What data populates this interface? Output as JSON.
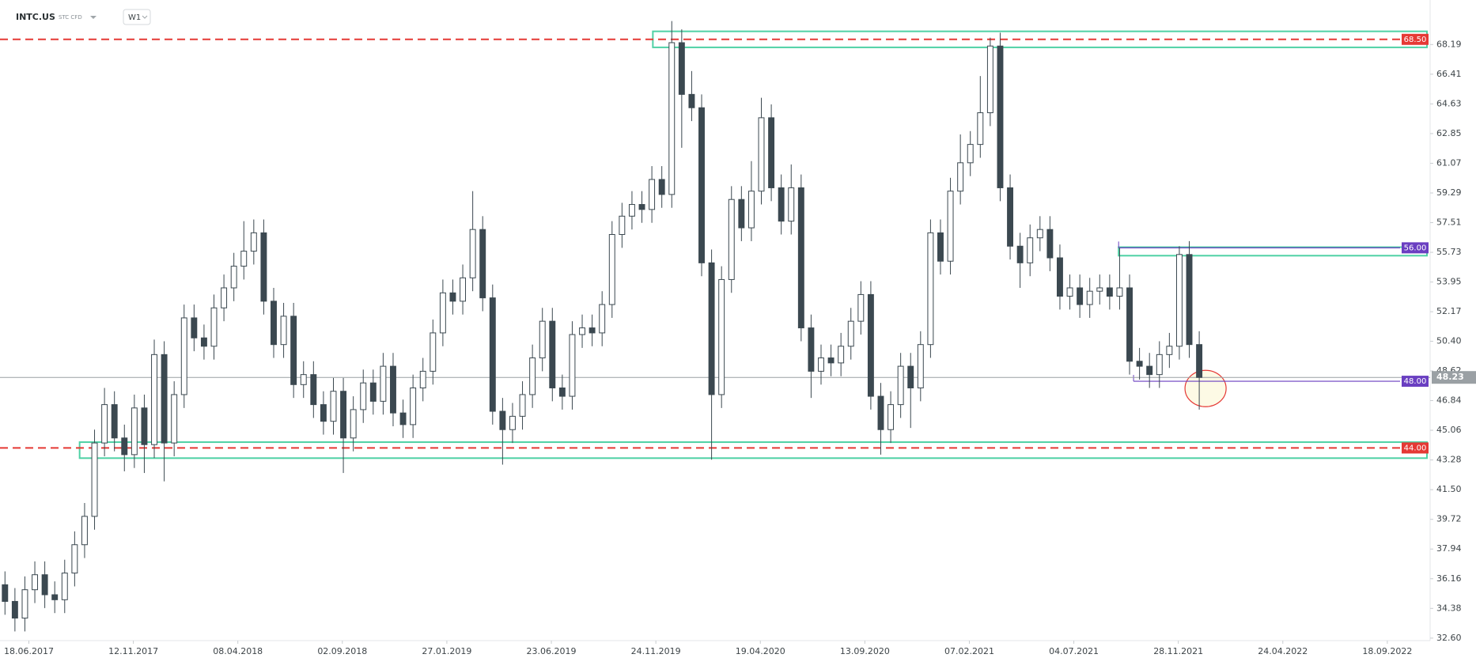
{
  "header": {
    "symbol": "INTC.US",
    "instrument": "STC CFD",
    "interval": "W1"
  },
  "chart_data": {
    "type": "candlestick",
    "xlim": [
      0,
      143.7
    ],
    "xticks": [
      {
        "value": 2.9,
        "label": "18.06.2017"
      },
      {
        "value": 13.4,
        "label": "12.11.2017"
      },
      {
        "value": 23.9,
        "label": "08.04.2018"
      },
      {
        "value": 34.4,
        "label": "02.09.2018"
      },
      {
        "value": 44.9,
        "label": "27.01.2019"
      },
      {
        "value": 55.4,
        "label": "23.06.2019"
      },
      {
        "value": 65.9,
        "label": "24.11.2019"
      },
      {
        "value": 76.4,
        "label": "19.04.2020"
      },
      {
        "value": 86.9,
        "label": "13.09.2020"
      },
      {
        "value": 97.4,
        "label": "07.02.2021"
      },
      {
        "value": 107.9,
        "label": "04.07.2021"
      },
      {
        "value": 118.4,
        "label": "28.11.2021"
      },
      {
        "value": 128.9,
        "label": "24.04.2022"
      },
      {
        "value": 139.4,
        "label": "18.09.2022"
      }
    ],
    "ylim": [
      32.45,
      70.86
    ],
    "yticks": [
      {
        "value": 32.6,
        "label": "32.60"
      },
      34.38,
      36.16,
      37.94,
      39.72,
      {
        "value": 41.5,
        "label": "41.50"
      },
      43.28,
      45.06,
      46.84,
      48.62,
      {
        "value": 50.4,
        "label": "50.40"
      },
      52.17,
      53.95,
      55.73,
      57.51,
      59.29,
      61.07,
      62.85,
      64.63,
      66.41,
      68.19
    ],
    "up_color": "#ffffff",
    "down_color": "#3b4850",
    "outline_color": "#3b4850",
    "open": [
      35.8,
      34.8,
      33.8,
      35.5,
      36.4,
      35.2,
      34.9,
      36.5,
      38.2,
      39.9,
      44.3,
      46.6,
      44.6,
      43.6,
      46.4,
      44.2,
      49.6,
      44.3,
      47.2,
      51.8,
      50.6,
      50.1,
      52.4,
      53.6,
      54.9,
      55.8,
      56.9,
      52.8,
      50.2,
      51.9,
      47.8,
      48.4,
      46.6,
      45.6,
      47.4,
      44.6,
      46.3,
      47.9,
      46.8,
      48.9,
      46.1,
      45.4,
      47.6,
      48.6,
      50.9,
      53.3,
      52.8,
      54.2,
      57.1,
      53.0,
      46.2,
      45.1,
      45.9,
      47.2,
      49.4,
      51.6,
      47.6,
      47.1,
      50.8,
      51.2,
      50.9,
      52.6,
      56.8,
      57.9,
      58.6,
      58.3,
      60.1,
      59.2,
      68.3,
      65.2,
      64.4,
      55.1,
      47.2,
      54.1,
      58.9,
      57.2,
      59.4,
      63.8,
      59.6,
      57.6,
      59.6,
      51.2,
      48.6,
      49.4,
      49.1,
      50.1,
      51.6,
      53.2,
      47.1,
      45.1,
      46.6,
      48.9,
      47.6,
      50.2,
      56.9,
      55.2,
      59.4,
      61.1,
      62.2,
      64.1,
      68.1,
      59.6,
      56.1,
      55.1,
      56.6,
      57.1,
      55.4,
      53.1,
      53.6,
      52.6,
      53.4,
      53.6,
      53.1,
      53.6,
      49.2,
      48.9,
      48.4,
      49.6,
      50.1,
      55.6,
      50.2
    ],
    "high": [
      36.6,
      35.6,
      36.3,
      37.2,
      37.2,
      36.0,
      37.3,
      39.0,
      40.7,
      45.1,
      47.6,
      47.4,
      45.4,
      47.2,
      47.2,
      50.5,
      50.4,
      48.0,
      52.6,
      52.6,
      51.4,
      53.2,
      54.4,
      55.7,
      57.6,
      57.7,
      57.7,
      53.6,
      52.7,
      52.7,
      49.2,
      49.2,
      47.4,
      48.2,
      48.2,
      47.1,
      48.7,
      48.7,
      49.7,
      49.7,
      46.9,
      48.4,
      49.4,
      51.7,
      54.1,
      54.1,
      55.0,
      59.4,
      57.9,
      53.8,
      47.0,
      46.7,
      48.0,
      50.2,
      52.4,
      52.4,
      48.4,
      51.6,
      52.0,
      52.0,
      53.4,
      57.6,
      58.7,
      59.4,
      59.4,
      60.9,
      60.9,
      69.6,
      69.1,
      66.6,
      65.2,
      55.9,
      54.9,
      59.7,
      59.7,
      61.2,
      65.0,
      64.6,
      60.4,
      61.0,
      60.4,
      52.0,
      50.2,
      50.2,
      50.9,
      52.4,
      54.0,
      54.0,
      47.9,
      47.4,
      49.7,
      49.7,
      51.0,
      57.7,
      57.7,
      60.2,
      62.8,
      63.0,
      66.3,
      68.6,
      68.9,
      60.4,
      56.9,
      57.4,
      57.9,
      57.9,
      56.2,
      54.4,
      54.4,
      54.2,
      54.4,
      54.4,
      56.0,
      54.4,
      50.0,
      49.7,
      50.4,
      50.9,
      56.1,
      56.4,
      51.0
    ],
    "low": [
      34.0,
      33.0,
      33.0,
      34.7,
      34.4,
      34.1,
      34.1,
      35.7,
      37.4,
      39.1,
      43.5,
      43.8,
      42.6,
      42.8,
      42.5,
      43.4,
      42.0,
      43.5,
      46.4,
      49.8,
      49.3,
      49.3,
      51.6,
      52.8,
      54.1,
      55.0,
      52.0,
      49.4,
      49.4,
      47.0,
      47.0,
      45.8,
      44.8,
      44.8,
      42.5,
      43.8,
      45.5,
      46.0,
      46.0,
      45.3,
      44.6,
      44.6,
      46.8,
      47.8,
      50.1,
      52.0,
      52.0,
      53.4,
      52.2,
      45.4,
      43.0,
      44.3,
      45.1,
      46.4,
      48.6,
      46.8,
      46.3,
      46.3,
      50.0,
      50.1,
      50.1,
      51.8,
      56.0,
      57.1,
      57.5,
      57.5,
      58.4,
      58.4,
      62.0,
      63.6,
      54.3,
      43.3,
      46.4,
      53.3,
      56.4,
      56.4,
      58.6,
      58.8,
      56.8,
      56.8,
      50.4,
      47.0,
      47.8,
      48.3,
      48.3,
      49.3,
      50.8,
      46.3,
      43.6,
      44.3,
      45.8,
      45.2,
      46.8,
      49.4,
      54.4,
      54.4,
      58.6,
      60.3,
      61.4,
      63.3,
      58.8,
      55.3,
      53.6,
      54.3,
      55.8,
      54.6,
      52.3,
      52.3,
      51.8,
      51.8,
      52.6,
      52.3,
      52.3,
      48.4,
      48.1,
      47.6,
      47.6,
      48.8,
      49.3,
      49.4,
      46.3
    ],
    "close": [
      34.8,
      33.8,
      35.5,
      36.4,
      35.2,
      34.9,
      36.5,
      38.2,
      39.9,
      44.3,
      46.6,
      44.6,
      43.6,
      46.4,
      44.2,
      49.6,
      44.3,
      47.2,
      51.8,
      50.6,
      50.1,
      52.4,
      53.6,
      54.9,
      55.8,
      56.9,
      52.8,
      50.2,
      51.9,
      47.8,
      48.4,
      46.6,
      45.6,
      47.4,
      44.6,
      46.3,
      47.9,
      46.8,
      48.9,
      46.1,
      45.4,
      47.6,
      48.6,
      50.9,
      53.3,
      52.8,
      54.2,
      57.1,
      53.0,
      46.2,
      45.1,
      45.9,
      47.2,
      49.4,
      51.6,
      47.6,
      47.1,
      50.8,
      51.2,
      50.9,
      52.6,
      56.8,
      57.9,
      58.6,
      58.3,
      60.1,
      59.2,
      68.3,
      65.2,
      64.4,
      55.1,
      47.2,
      54.1,
      58.9,
      57.2,
      59.4,
      63.8,
      59.6,
      57.6,
      59.6,
      51.2,
      48.6,
      49.4,
      49.1,
      50.1,
      51.6,
      53.2,
      47.1,
      45.1,
      46.6,
      48.9,
      47.6,
      50.2,
      56.9,
      55.2,
      59.4,
      61.1,
      62.2,
      64.1,
      68.1,
      59.6,
      56.1,
      55.1,
      56.6,
      57.1,
      55.4,
      53.1,
      53.6,
      52.6,
      53.4,
      53.6,
      53.1,
      53.6,
      49.2,
      48.9,
      48.4,
      49.6,
      50.1,
      55.6,
      50.2,
      48.23
    ],
    "zone_color": "#4fd1a5",
    "zones": [
      {
        "x_start": 65.6,
        "ylim": [
          68.02,
          68.98
        ]
      },
      {
        "x_start": 8.0,
        "ylim": [
          43.39,
          44.35
        ]
      },
      {
        "x_start": 112.4,
        "ylim": [
          55.53,
          56.04
        ]
      }
    ],
    "levels": [
      {
        "value": 68.5,
        "label": "68.50",
        "color": "#e53935",
        "style": "dashed"
      },
      {
        "value": 56,
        "label": "56.00",
        "color": "#6a3fc1",
        "style": "solid",
        "x_start": 112.4
      },
      {
        "value": 48,
        "label": "48.00",
        "color": "#6a3fc1",
        "style": "solid",
        "x_start": 113.9
      },
      {
        "value": 44,
        "label": "44.00",
        "color": "#e53935",
        "style": "dashed"
      },
      {
        "value": 48.23,
        "color": "#9aa0a4",
        "style": "current"
      }
    ]
  }
}
